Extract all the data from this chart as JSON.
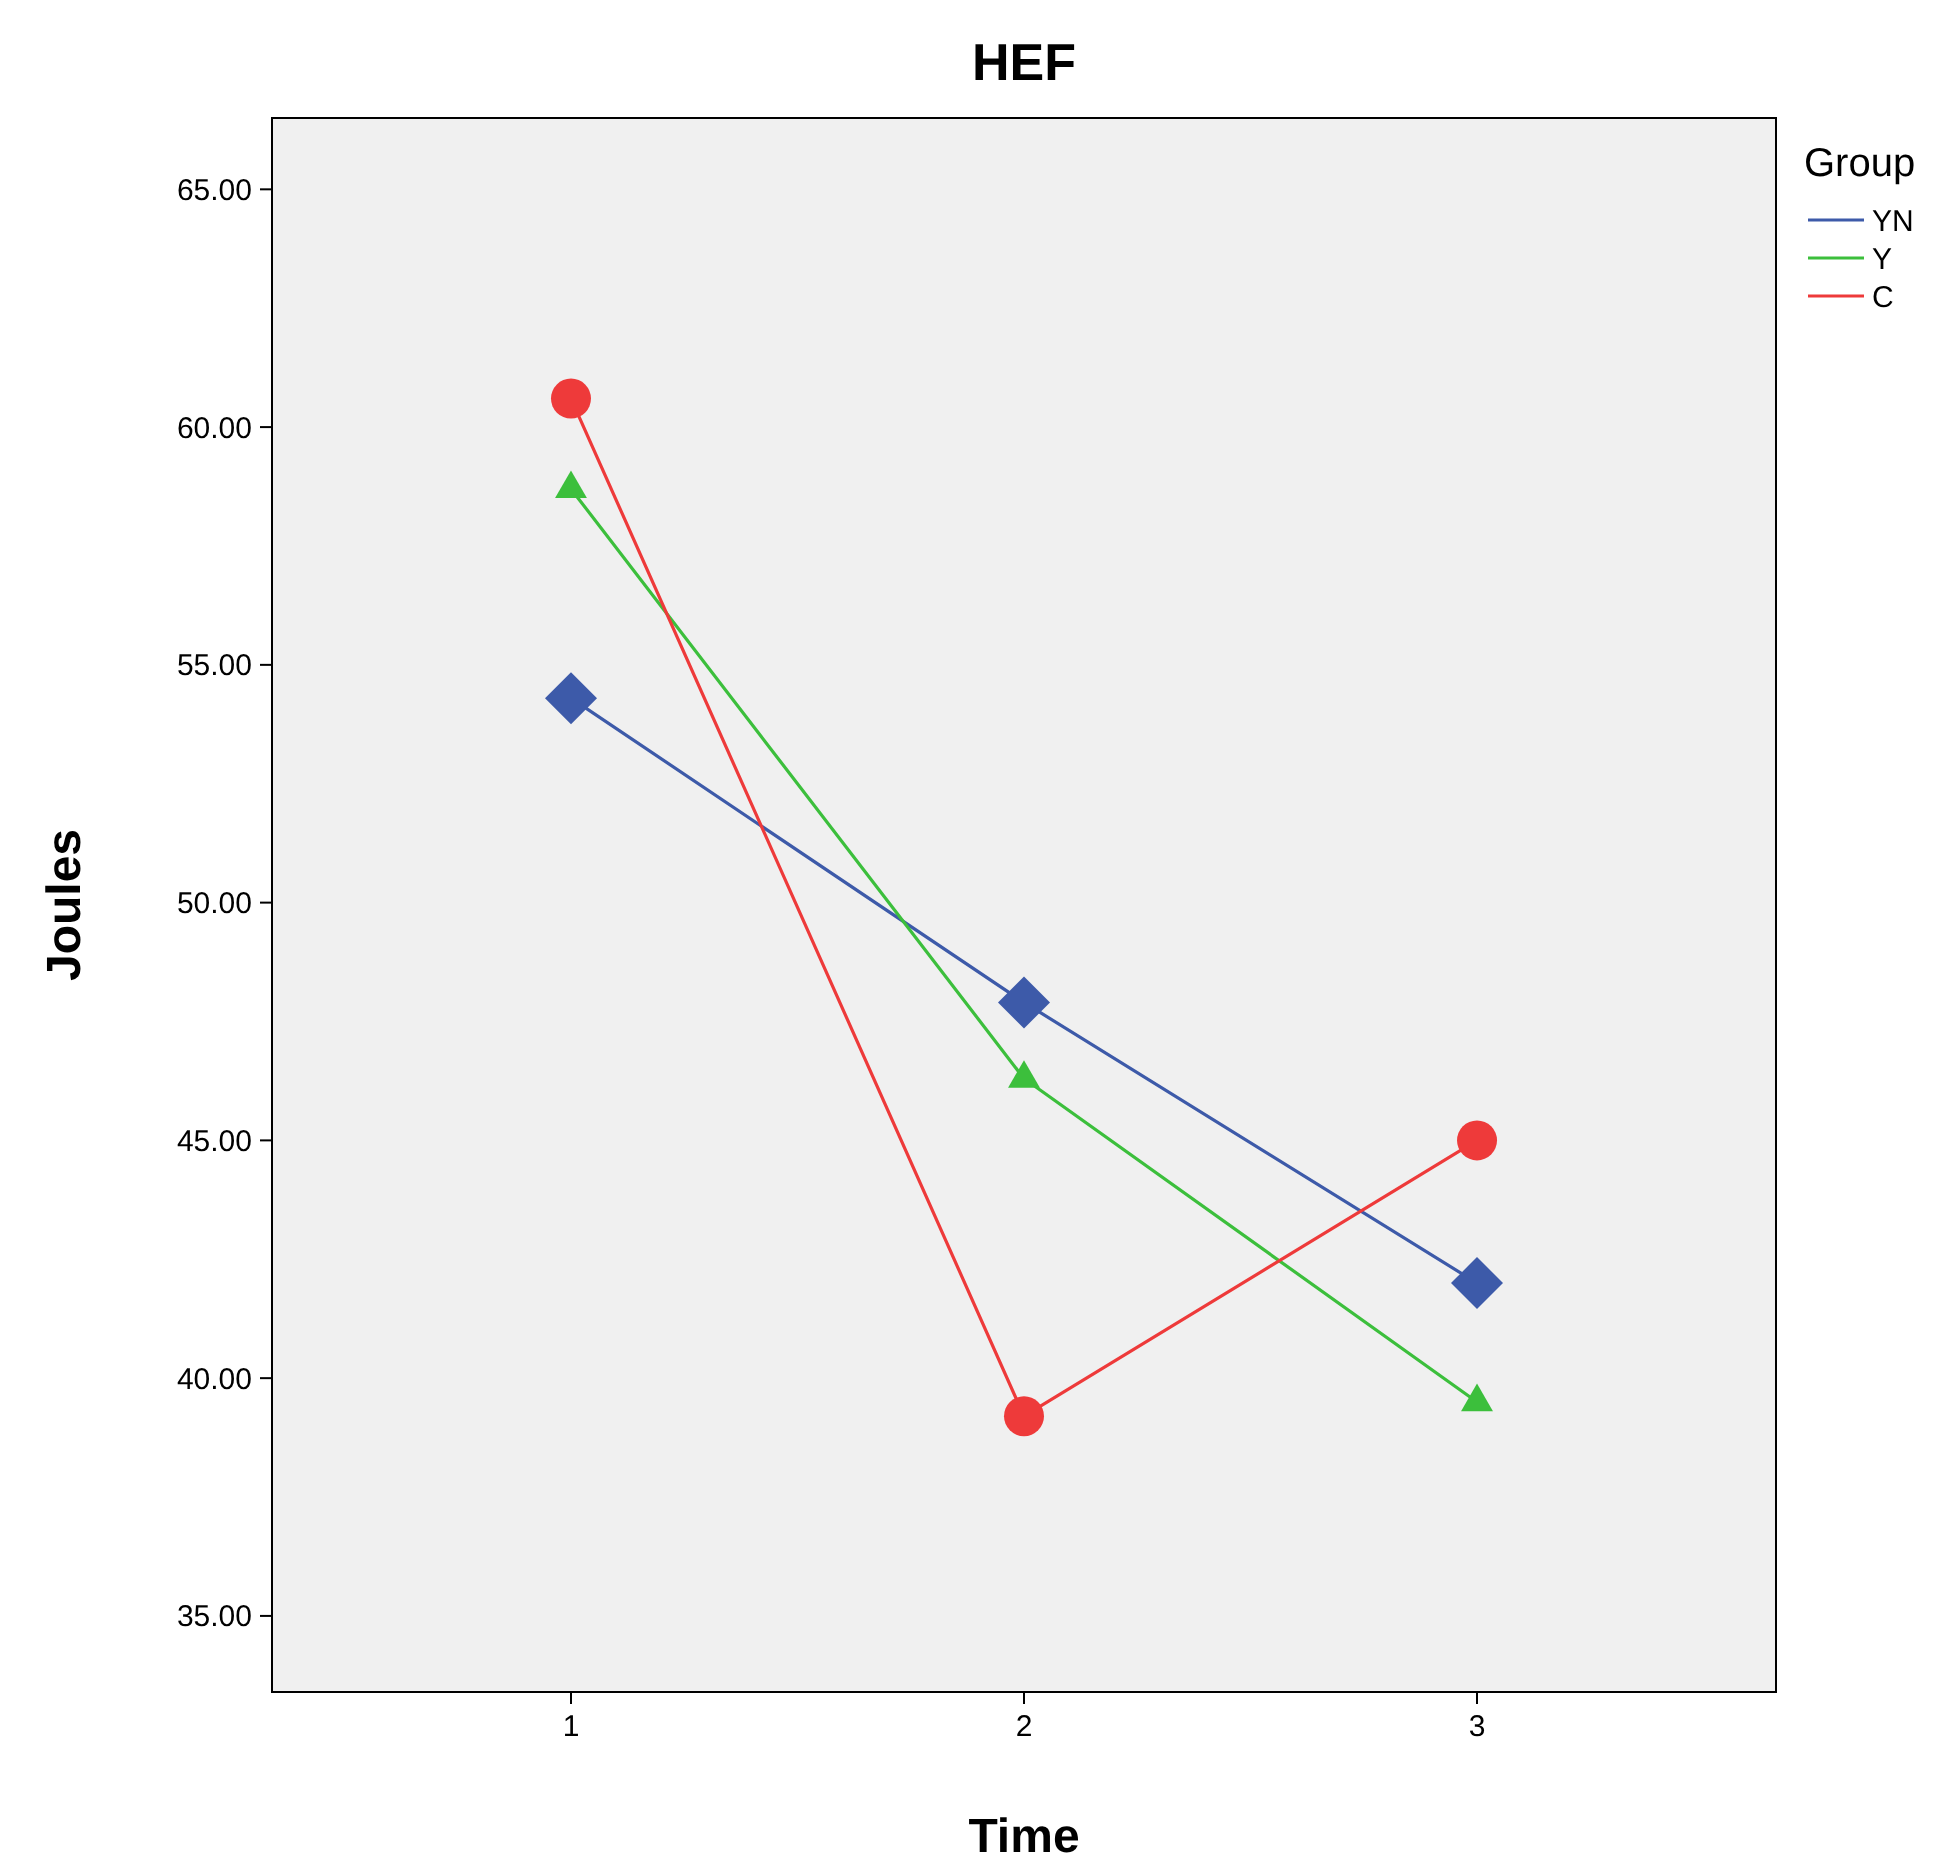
{
  "chart_data": {
    "type": "line",
    "title": "HEF",
    "xlabel": "Time",
    "ylabel": "Joules",
    "legend_title": "Group",
    "legend": "top right",
    "grid": false,
    "categories": [
      "1",
      "2",
      "3"
    ],
    "ylim": [
      33.4,
      66.5
    ],
    "yticks": [
      {
        "value": 35,
        "label": "35.00"
      },
      {
        "value": 40,
        "label": "40.00"
      },
      {
        "value": 45,
        "label": "45.00"
      },
      {
        "value": 50,
        "label": "50.00"
      },
      {
        "value": 55,
        "label": "55.00"
      },
      {
        "value": 60,
        "label": "60.00"
      },
      {
        "value": 65,
        "label": "65.00"
      }
    ],
    "series": [
      {
        "name": "YN",
        "color": "#3d5aa9",
        "marker": "diamond",
        "values": [
          54.3,
          47.9,
          42.0
        ]
      },
      {
        "name": "Y",
        "color": "#3cbf3c",
        "marker": "triangle",
        "values": [
          58.7,
          46.3,
          39.5
        ]
      },
      {
        "name": "C",
        "color": "#ee3a3a",
        "marker": "circle",
        "values": [
          60.6,
          39.2,
          45.0
        ]
      }
    ]
  }
}
